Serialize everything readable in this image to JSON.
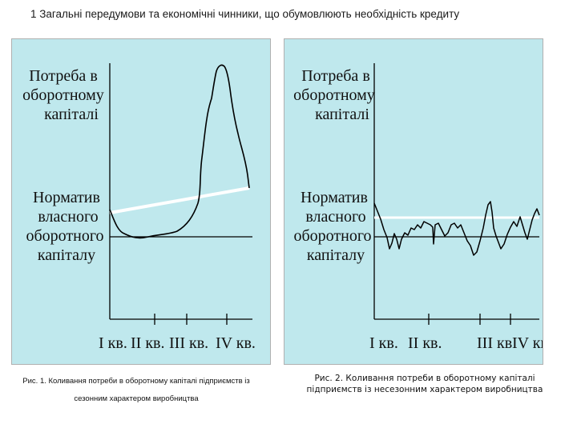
{
  "slide_title": "1 Загальні передумови та економічні чинники, що обумовлюють необхідність кредиту",
  "diagram1": {
    "y_label_lines": [
      "Потреба в",
      "оборотному",
      "капіталі"
    ],
    "norm_label_lines": [
      "Норматив",
      "власного",
      "оборотного",
      "капіталу"
    ],
    "x_labels": [
      "І кв.",
      "ІІ кв.",
      "ІІІ кв.",
      "ІV кв."
    ]
  },
  "diagram2": {
    "y_label_lines": [
      "Потреба в",
      "оборотному",
      "капіталі"
    ],
    "norm_label_lines": [
      "Норматив",
      "власного",
      "оборотного",
      "капіталу"
    ],
    "x_labels": [
      "І кв.",
      "ІІ кв.",
      "ІІІ кв",
      "ІV кв."
    ]
  },
  "caption1": "Рис. 1. Коливання потреби в оборотному капіталі підприємств із сезонним характером виробництва",
  "caption2": "Рис. 2. Коливання потреби в оборотному капіталі підприємств  із несезонним характером виробництва",
  "colors": {
    "panel_bg": "#bfe8ed",
    "norm_line": "#ffffff",
    "curve": "#000000"
  }
}
